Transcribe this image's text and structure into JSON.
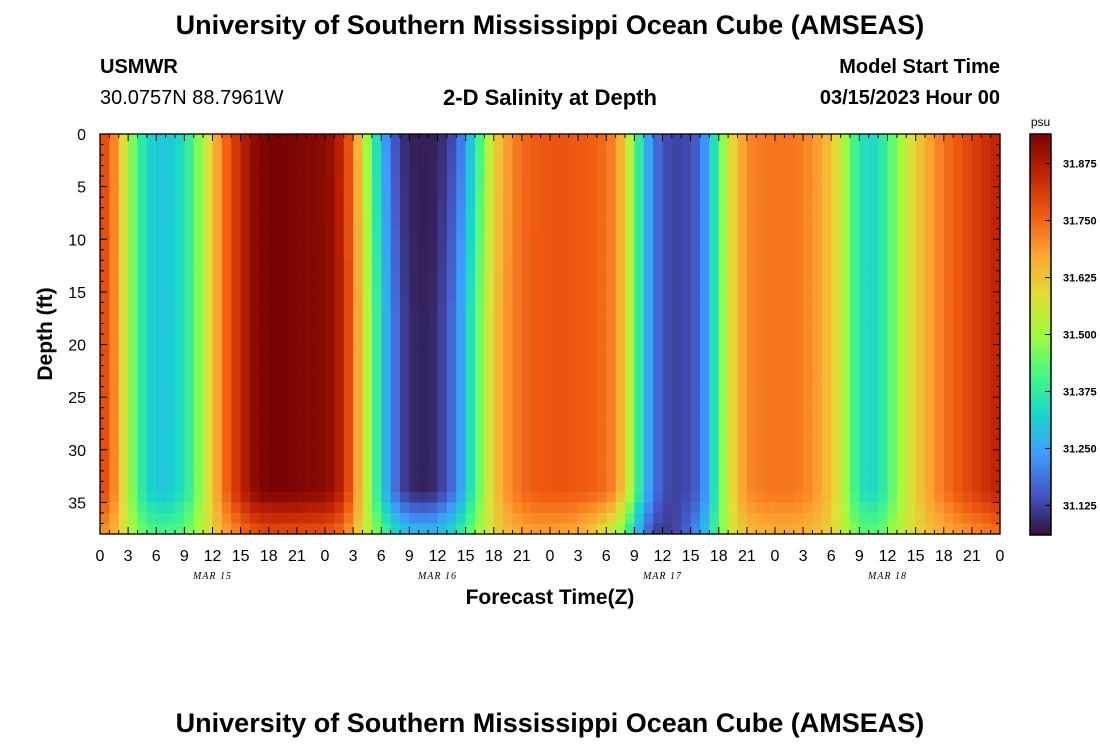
{
  "page": {
    "title": "University of Southern Mississippi Ocean Cube (AMSEAS)",
    "title_repeat": "University of Southern Mississippi Ocean Cube (AMSEAS)",
    "station": "USMWR",
    "coords": "30.0757N  88.7961W",
    "plot_title": "2-D Salinity at Depth",
    "start_label": "Model Start Time",
    "start_value": "03/15/2023 Hour 00"
  },
  "chart_data": {
    "type": "heatmap",
    "title": "2-D Salinity at Depth",
    "xlabel": "Forecast Time(Z)",
    "ylabel": "Depth (ft)",
    "x_range_hours": [
      0,
      96
    ],
    "x_tick_step_hours": 3,
    "x_tick_labels": [
      "0",
      "3",
      "6",
      "9",
      "12",
      "15",
      "18",
      "21",
      "0",
      "3",
      "6",
      "9",
      "12",
      "15",
      "18",
      "21",
      "0",
      "3",
      "6",
      "9",
      "12",
      "15",
      "18",
      "21",
      "0",
      "3",
      "6",
      "9",
      "12",
      "15",
      "18",
      "21",
      "0"
    ],
    "date_labels": [
      {
        "text": "MAR 15",
        "hour": 12
      },
      {
        "text": "MAR 16",
        "hour": 36
      },
      {
        "text": "MAR 17",
        "hour": 60
      },
      {
        "text": "MAR 18",
        "hour": 84
      }
    ],
    "y_range_ft": [
      0,
      38
    ],
    "y_tick_values": [
      0,
      5,
      10,
      15,
      20,
      25,
      30,
      35
    ],
    "colorbar": {
      "unit": "psu",
      "min": 31.06,
      "max": 31.94,
      "tick_values": [
        31.125,
        31.25,
        31.375,
        31.5,
        31.625,
        31.75,
        31.875
      ],
      "tick_labels": [
        "31.125",
        "31.250",
        "31.375",
        "31.500",
        "31.625",
        "31.750",
        "31.875"
      ],
      "stops": [
        "#30123b",
        "#4454c4",
        "#3e9bfe",
        "#18d6cb",
        "#46f884",
        "#a2fc3c",
        "#e1dd37",
        "#fea331",
        "#ef5911",
        "#c22403",
        "#7a0403"
      ]
    },
    "surface_salinity_timeseries": {
      "hours": [
        0,
        1,
        2,
        3,
        4,
        5,
        6,
        7,
        8,
        9,
        10,
        11,
        12,
        13,
        14,
        15,
        16,
        17,
        18,
        20,
        22,
        24,
        25,
        26,
        27,
        28,
        29,
        30,
        31,
        32,
        33,
        35,
        36,
        38,
        40,
        42,
        44,
        46,
        48,
        50,
        52,
        54,
        55,
        56,
        57,
        58,
        59,
        60,
        62,
        64,
        65,
        66,
        67,
        68,
        69,
        70,
        72,
        74,
        76,
        78,
        79,
        80,
        81,
        82,
        83,
        84,
        86,
        88,
        90,
        92,
        94,
        96
      ],
      "psu": [
        31.8,
        31.76,
        31.66,
        31.52,
        31.4,
        31.33,
        31.3,
        31.3,
        31.32,
        31.35,
        31.42,
        31.52,
        31.63,
        31.72,
        31.79,
        31.85,
        31.9,
        31.93,
        31.94,
        31.94,
        31.93,
        31.92,
        31.9,
        31.84,
        31.74,
        31.6,
        31.45,
        31.32,
        31.22,
        31.14,
        31.09,
        31.08,
        31.1,
        31.2,
        31.4,
        31.62,
        31.72,
        31.76,
        31.77,
        31.77,
        31.76,
        31.74,
        31.7,
        31.6,
        31.45,
        31.3,
        31.2,
        31.14,
        31.12,
        31.17,
        31.28,
        31.42,
        31.55,
        31.65,
        31.7,
        31.72,
        31.73,
        31.73,
        31.7,
        31.63,
        31.55,
        31.44,
        31.36,
        31.33,
        31.34,
        31.4,
        31.55,
        31.66,
        31.73,
        31.78,
        31.82,
        31.86
      ]
    },
    "notes": "Salinity is near-uniform with depth; near 36-38 ft values are smoothed toward ~31.35-31.75. Lowest values (<31.1 psu) occur near 12Z Mar 16 in the upper 15 ft and near 12Z Mar 17 at the bottom."
  }
}
